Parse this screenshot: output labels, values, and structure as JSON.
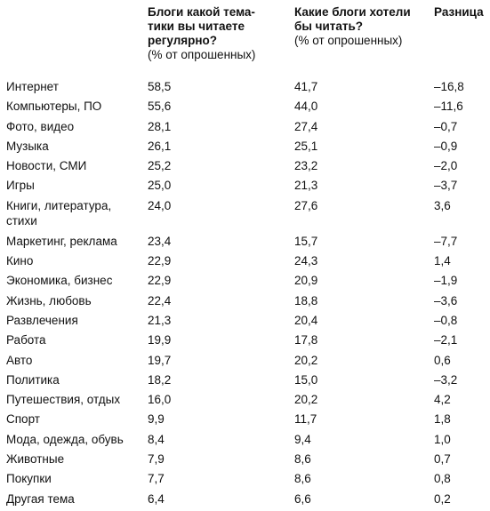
{
  "headers": {
    "read": {
      "title": "Блоги какой тема-\nтики вы читаете\nрегулярно?",
      "sub": "(% от опрошенных)"
    },
    "want": {
      "title": "Какие блоги хотели\nбы читать?",
      "sub": "(% от опрошенных)"
    },
    "diff": {
      "title": "Разница"
    }
  },
  "rows": [
    {
      "topic": "Интернет",
      "read": "58,5",
      "want": "41,7",
      "diff": "–16,8"
    },
    {
      "topic": "Компьютеры, ПО",
      "read": "55,6",
      "want": "44,0",
      "diff": "–11,6"
    },
    {
      "topic": "Фото, видео",
      "read": "28,1",
      "want": "27,4",
      "diff": "–0,7"
    },
    {
      "topic": "Музыка",
      "read": "26,1",
      "want": "25,1",
      "diff": "–0,9"
    },
    {
      "topic": "Новости, СМИ",
      "read": "25,2",
      "want": "23,2",
      "diff": "–2,0"
    },
    {
      "topic": "Игры",
      "read": "25,0",
      "want": "21,3",
      "diff": "–3,7"
    },
    {
      "topic": "Книги, литература,\nстихи",
      "read": "24,0",
      "want": "27,6",
      "diff": "3,6"
    },
    {
      "topic": "Маркетинг, реклама",
      "read": "23,4",
      "want": "15,7",
      "diff": "–7,7"
    },
    {
      "topic": "Кино",
      "read": "22,9",
      "want": "24,3",
      "diff": "1,4"
    },
    {
      "topic": "Экономика, бизнес",
      "read": "22,9",
      "want": "20,9",
      "diff": "–1,9"
    },
    {
      "topic": "Жизнь, любовь",
      "read": "22,4",
      "want": "18,8",
      "diff": "–3,6"
    },
    {
      "topic": "Развлечения",
      "read": "21,3",
      "want": "20,4",
      "diff": "–0,8"
    },
    {
      "topic": "Работа",
      "read": "19,9",
      "want": "17,8",
      "diff": "–2,1"
    },
    {
      "topic": "Авто",
      "read": "19,7",
      "want": "20,2",
      "diff": "0,6"
    },
    {
      "topic": "Политика",
      "read": "18,2",
      "want": "15,0",
      "diff": "–3,2"
    },
    {
      "topic": "Путешествия, отдых",
      "read": "16,0",
      "want": "20,2",
      "diff": "4,2"
    },
    {
      "topic": "Спорт",
      "read": "9,9",
      "want": "11,7",
      "diff": "1,8"
    },
    {
      "topic": "Мода, одежда, обувь",
      "read": "8,4",
      "want": "9,4",
      "diff": "1,0"
    },
    {
      "topic": "Животные",
      "read": "7,9",
      "want": "8,6",
      "diff": "0,7"
    },
    {
      "topic": "Покупки",
      "read": "7,7",
      "want": "8,6",
      "diff": "0,8"
    },
    {
      "topic": "Другая тема",
      "read": "6,4",
      "want": "6,6",
      "diff": "0,2"
    }
  ]
}
